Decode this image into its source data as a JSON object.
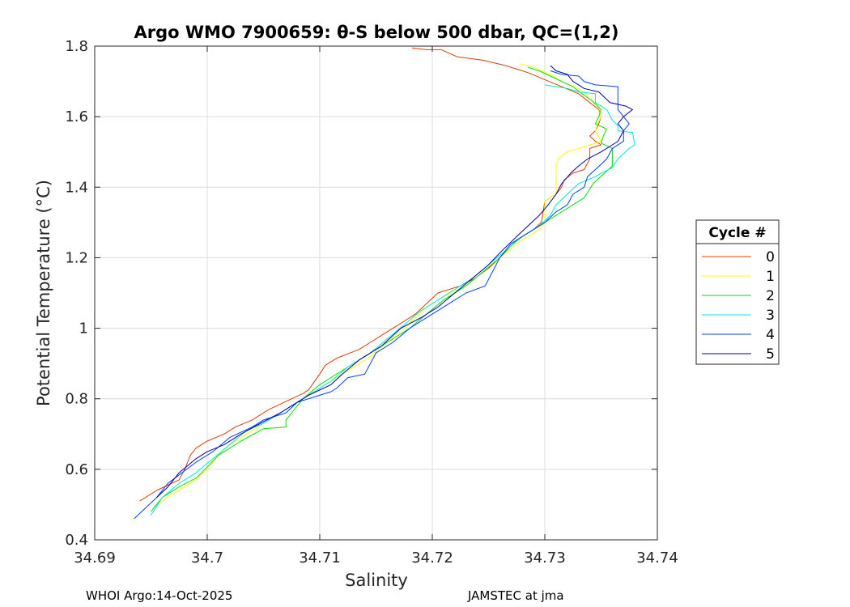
{
  "chart_data": {
    "type": "line",
    "title": "Argo WMO 7900659: θ-S below 500 dbar,  QC=(1,2)",
    "xlabel": "Salinity",
    "ylabel": "Potential Temperature (°C)",
    "xlim": [
      34.69,
      34.74
    ],
    "ylim": [
      0.4,
      1.8
    ],
    "xticks": [
      "34.69",
      "34.7",
      "34.71",
      "34.72",
      "34.73",
      "34.74"
    ],
    "yticks": [
      "0.4",
      "0.6",
      "0.8",
      "1",
      "1.2",
      "1.4",
      "1.6",
      "1.8"
    ],
    "xtick_values": [
      34.69,
      34.7,
      34.71,
      34.72,
      34.73,
      34.74
    ],
    "ytick_values": [
      0.4,
      0.6,
      0.8,
      1.0,
      1.2,
      1.4,
      1.6,
      1.8
    ],
    "grid": true,
    "legend": {
      "title": "Cycle #",
      "placement": "outside-right"
    },
    "series": [
      {
        "name": "0",
        "color": "#e03c00",
        "points": [
          [
            34.7182,
            1.795
          ],
          [
            34.7195,
            1.79
          ],
          [
            34.7208,
            1.79
          ],
          [
            34.7222,
            1.77
          ],
          [
            34.7245,
            1.76
          ],
          [
            34.7265,
            1.745
          ],
          [
            34.7285,
            1.725
          ],
          [
            34.73,
            1.705
          ],
          [
            34.7315,
            1.685
          ],
          [
            34.733,
            1.665
          ],
          [
            34.734,
            1.64
          ],
          [
            34.7348,
            1.62
          ],
          [
            34.735,
            1.6
          ],
          [
            34.7348,
            1.58
          ],
          [
            34.7345,
            1.56
          ],
          [
            34.734,
            1.545
          ],
          [
            34.7345,
            1.53
          ],
          [
            34.735,
            1.52
          ],
          [
            34.734,
            1.51
          ],
          [
            34.734,
            1.48
          ],
          [
            34.7335,
            1.45
          ],
          [
            34.7325,
            1.44
          ],
          [
            34.7317,
            1.42
          ],
          [
            34.7315,
            1.4
          ],
          [
            34.731,
            1.38
          ],
          [
            34.73,
            1.36
          ],
          [
            34.7297,
            1.3
          ],
          [
            34.729,
            1.28
          ],
          [
            34.728,
            1.26
          ],
          [
            34.727,
            1.24
          ],
          [
            34.726,
            1.2
          ],
          [
            34.725,
            1.17
          ],
          [
            34.7237,
            1.14
          ],
          [
            34.7225,
            1.12
          ],
          [
            34.7205,
            1.1
          ],
          [
            34.72,
            1.085
          ],
          [
            34.7185,
            1.04
          ],
          [
            34.7175,
            1.02
          ],
          [
            34.7165,
            1.0
          ],
          [
            34.7155,
            0.98
          ],
          [
            34.7145,
            0.96
          ],
          [
            34.7135,
            0.94
          ],
          [
            34.7115,
            0.915
          ],
          [
            34.7105,
            0.895
          ],
          [
            34.71,
            0.87
          ],
          [
            34.709,
            0.825
          ],
          [
            34.7085,
            0.815
          ],
          [
            34.7075,
            0.8
          ],
          [
            34.7065,
            0.785
          ],
          [
            34.7055,
            0.77
          ],
          [
            34.705,
            0.76
          ],
          [
            34.704,
            0.74
          ],
          [
            34.7025,
            0.72
          ],
          [
            34.7015,
            0.7
          ],
          [
            34.7,
            0.68
          ],
          [
            34.699,
            0.66
          ],
          [
            34.6985,
            0.64
          ],
          [
            34.698,
            0.6
          ],
          [
            34.6975,
            0.57
          ],
          [
            34.6955,
            0.54
          ],
          [
            34.694,
            0.51
          ]
        ]
      },
      {
        "name": "1",
        "color": "#ffff00",
        "points": [
          [
            34.7278,
            1.75
          ],
          [
            34.729,
            1.74
          ],
          [
            34.7305,
            1.72
          ],
          [
            34.7315,
            1.7
          ],
          [
            34.7322,
            1.69
          ],
          [
            34.733,
            1.68
          ],
          [
            34.7337,
            1.665
          ],
          [
            34.734,
            1.65
          ],
          [
            34.7348,
            1.63
          ],
          [
            34.735,
            1.6
          ],
          [
            34.7347,
            1.58
          ],
          [
            34.7345,
            1.56
          ],
          [
            34.735,
            1.53
          ],
          [
            34.734,
            1.52
          ],
          [
            34.732,
            1.5
          ],
          [
            34.7312,
            1.48
          ],
          [
            34.731,
            1.46
          ],
          [
            34.731,
            1.38
          ],
          [
            34.73,
            1.36
          ],
          [
            34.73,
            1.3
          ],
          [
            34.7295,
            1.28
          ],
          [
            34.7285,
            1.26
          ],
          [
            34.7275,
            1.24
          ],
          [
            34.726,
            1.2
          ],
          [
            34.7245,
            1.16
          ],
          [
            34.723,
            1.12
          ],
          [
            34.721,
            1.09
          ],
          [
            34.7195,
            1.06
          ],
          [
            34.7175,
            1.0
          ],
          [
            34.716,
            0.96
          ],
          [
            34.7145,
            0.92
          ],
          [
            34.7125,
            0.88
          ],
          [
            34.71,
            0.83
          ],
          [
            34.7085,
            0.8
          ],
          [
            34.707,
            0.77
          ],
          [
            34.7055,
            0.74
          ],
          [
            34.704,
            0.71
          ],
          [
            34.702,
            0.67
          ],
          [
            34.701,
            0.64
          ],
          [
            34.7,
            0.6
          ],
          [
            34.699,
            0.57
          ],
          [
            34.698,
            0.55
          ],
          [
            34.6965,
            0.52
          ],
          [
            34.6955,
            0.5
          ]
        ]
      },
      {
        "name": "2",
        "color": "#00e000",
        "points": [
          [
            34.7285,
            1.74
          ],
          [
            34.7295,
            1.73
          ],
          [
            34.7305,
            1.715
          ],
          [
            34.7315,
            1.7
          ],
          [
            34.7325,
            1.685
          ],
          [
            34.7333,
            1.665
          ],
          [
            34.7342,
            1.645
          ],
          [
            34.735,
            1.62
          ],
          [
            34.7348,
            1.6
          ],
          [
            34.7345,
            1.58
          ],
          [
            34.7355,
            1.565
          ],
          [
            34.7352,
            1.545
          ],
          [
            34.735,
            1.525
          ],
          [
            34.736,
            1.51
          ],
          [
            34.736,
            1.46
          ],
          [
            34.7353,
            1.44
          ],
          [
            34.7343,
            1.41
          ],
          [
            34.7335,
            1.37
          ],
          [
            34.7325,
            1.35
          ],
          [
            34.7315,
            1.33
          ],
          [
            34.7305,
            1.31
          ],
          [
            34.7295,
            1.29
          ],
          [
            34.7285,
            1.27
          ],
          [
            34.7275,
            1.25
          ],
          [
            34.726,
            1.2
          ],
          [
            34.7245,
            1.16
          ],
          [
            34.723,
            1.12
          ],
          [
            34.721,
            1.08
          ],
          [
            34.7195,
            1.04
          ],
          [
            34.718,
            1.0
          ],
          [
            34.716,
            0.96
          ],
          [
            34.7145,
            0.93
          ],
          [
            34.7125,
            0.89
          ],
          [
            34.71,
            0.84
          ],
          [
            34.7085,
            0.8
          ],
          [
            34.707,
            0.74
          ],
          [
            34.707,
            0.72
          ],
          [
            34.705,
            0.715
          ],
          [
            34.703,
            0.68
          ],
          [
            34.701,
            0.64
          ],
          [
            34.6995,
            0.59
          ],
          [
            34.699,
            0.575
          ],
          [
            34.6975,
            0.55
          ],
          [
            34.696,
            0.52
          ],
          [
            34.695,
            0.48
          ]
        ]
      },
      {
        "name": "3",
        "color": "#00e8e8",
        "points": [
          [
            34.73,
            1.69
          ],
          [
            34.732,
            1.68
          ],
          [
            34.733,
            1.67
          ],
          [
            34.7345,
            1.665
          ],
          [
            34.7345,
            1.64
          ],
          [
            34.7355,
            1.62
          ],
          [
            34.736,
            1.59
          ],
          [
            34.7365,
            1.575
          ],
          [
            34.7365,
            1.56
          ],
          [
            34.7378,
            1.555
          ],
          [
            34.738,
            1.52
          ],
          [
            34.7375,
            1.51
          ],
          [
            34.7365,
            1.48
          ],
          [
            34.736,
            1.455
          ],
          [
            34.735,
            1.44
          ],
          [
            34.7345,
            1.43
          ],
          [
            34.733,
            1.41
          ],
          [
            34.732,
            1.38
          ],
          [
            34.731,
            1.35
          ],
          [
            34.7305,
            1.32
          ],
          [
            34.7295,
            1.29
          ],
          [
            34.728,
            1.26
          ],
          [
            34.7265,
            1.22
          ],
          [
            34.725,
            1.18
          ],
          [
            34.7235,
            1.14
          ],
          [
            34.722,
            1.11
          ],
          [
            34.7205,
            1.08
          ],
          [
            34.719,
            1.05
          ],
          [
            34.7175,
            1.01
          ],
          [
            34.716,
            0.97
          ],
          [
            34.7145,
            0.93
          ],
          [
            34.7125,
            0.89
          ],
          [
            34.711,
            0.85
          ],
          [
            34.709,
            0.81
          ],
          [
            34.707,
            0.77
          ],
          [
            34.705,
            0.73
          ],
          [
            34.7035,
            0.71
          ],
          [
            34.702,
            0.67
          ],
          [
            34.7005,
            0.63
          ],
          [
            34.699,
            0.59
          ],
          [
            34.6975,
            0.56
          ],
          [
            34.696,
            0.52
          ],
          [
            34.695,
            0.47
          ]
        ]
      },
      {
        "name": "4",
        "color": "#0040ff",
        "points": [
          [
            34.7305,
            1.73
          ],
          [
            34.7315,
            1.72
          ],
          [
            34.733,
            1.715
          ],
          [
            34.7335,
            1.7
          ],
          [
            34.7345,
            1.69
          ],
          [
            34.7365,
            1.685
          ],
          [
            34.7365,
            1.62
          ],
          [
            34.737,
            1.6
          ],
          [
            34.7375,
            1.58
          ],
          [
            34.737,
            1.56
          ],
          [
            34.737,
            1.53
          ],
          [
            34.736,
            1.51
          ],
          [
            34.7355,
            1.48
          ],
          [
            34.7345,
            1.45
          ],
          [
            34.7338,
            1.43
          ],
          [
            34.7335,
            1.4
          ],
          [
            34.7325,
            1.38
          ],
          [
            34.732,
            1.35
          ],
          [
            34.731,
            1.33
          ],
          [
            34.73,
            1.3
          ],
          [
            34.7285,
            1.27
          ],
          [
            34.727,
            1.24
          ],
          [
            34.726,
            1.2
          ],
          [
            34.7247,
            1.12
          ],
          [
            34.723,
            1.1
          ],
          [
            34.7215,
            1.07
          ],
          [
            34.72,
            1.04
          ],
          [
            34.718,
            1.0
          ],
          [
            34.7165,
            0.96
          ],
          [
            34.715,
            0.93
          ],
          [
            34.714,
            0.87
          ],
          [
            34.7125,
            0.86
          ],
          [
            34.7115,
            0.83
          ],
          [
            34.711,
            0.82
          ],
          [
            34.7095,
            0.805
          ],
          [
            34.708,
            0.79
          ],
          [
            34.707,
            0.76
          ],
          [
            34.705,
            0.74
          ],
          [
            34.704,
            0.72
          ],
          [
            34.702,
            0.69
          ],
          [
            34.7005,
            0.65
          ],
          [
            34.699,
            0.62
          ],
          [
            34.6965,
            0.56
          ],
          [
            34.6955,
            0.52
          ],
          [
            34.6935,
            0.46
          ]
        ]
      },
      {
        "name": "5",
        "color": "#0000a8",
        "points": [
          [
            34.7305,
            1.745
          ],
          [
            34.731,
            1.73
          ],
          [
            34.732,
            1.72
          ],
          [
            34.7325,
            1.7
          ],
          [
            34.7335,
            1.68
          ],
          [
            34.7348,
            1.67
          ],
          [
            34.7358,
            1.64
          ],
          [
            34.7372,
            1.63
          ],
          [
            34.7378,
            1.62
          ],
          [
            34.737,
            1.6
          ],
          [
            34.7365,
            1.58
          ],
          [
            34.737,
            1.56
          ],
          [
            34.7365,
            1.53
          ],
          [
            34.736,
            1.52
          ],
          [
            34.735,
            1.5
          ],
          [
            34.7338,
            1.48
          ],
          [
            34.733,
            1.46
          ],
          [
            34.7323,
            1.44
          ],
          [
            34.7315,
            1.41
          ],
          [
            34.731,
            1.38
          ],
          [
            34.7303,
            1.35
          ],
          [
            34.7295,
            1.32
          ],
          [
            34.7285,
            1.29
          ],
          [
            34.7275,
            1.26
          ],
          [
            34.7262,
            1.22
          ],
          [
            34.725,
            1.18
          ],
          [
            34.7235,
            1.14
          ],
          [
            34.722,
            1.1
          ],
          [
            34.7205,
            1.06
          ],
          [
            34.719,
            1.03
          ],
          [
            34.7172,
            1.0
          ],
          [
            34.7155,
            0.95
          ],
          [
            34.7135,
            0.91
          ],
          [
            34.712,
            0.87
          ],
          [
            34.711,
            0.84
          ],
          [
            34.709,
            0.81
          ],
          [
            34.708,
            0.79
          ],
          [
            34.7065,
            0.76
          ],
          [
            34.705,
            0.735
          ],
          [
            34.703,
            0.7
          ],
          [
            34.7015,
            0.67
          ],
          [
            34.7,
            0.65
          ],
          [
            34.699,
            0.63
          ],
          [
            34.6975,
            0.59
          ],
          [
            34.6965,
            0.55
          ],
          [
            34.6955,
            0.52
          ]
        ]
      }
    ]
  },
  "footer": {
    "left": "WHOI Argo:14-Oct-2025",
    "right": "JAMSTEC at jma"
  }
}
